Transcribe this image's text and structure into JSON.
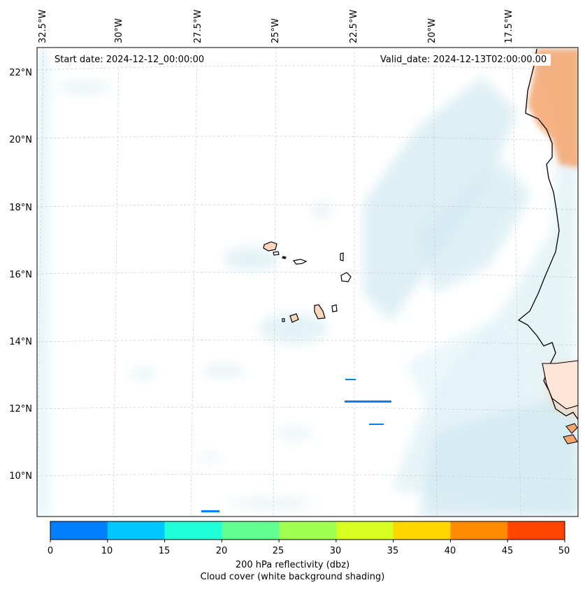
{
  "map": {
    "start_date": "Start date: 2024-12-12_00:00:00",
    "valid_date": "Valid_date: 2024-12-13T02:00:00.00",
    "longitude_labels": [
      "32.5°W",
      "30°W",
      "27.5°W",
      "25°W",
      "22.5°W",
      "20°W",
      "17.5°W"
    ],
    "latitude_labels": [
      "22°N",
      "20°N",
      "18°N",
      "16°N",
      "14°N",
      "12°N",
      "10°N"
    ],
    "land_color": "#fbd5bd",
    "coast_color": "#000000",
    "cloud_color": "#add8e6",
    "warm_color": "#f4a46c"
  },
  "colorbar": {
    "ticks": [
      "0",
      "10",
      "15",
      "20",
      "25",
      "30",
      "35",
      "40",
      "45",
      "50"
    ],
    "colors": [
      "#0080ff",
      "#00c8ff",
      "#20ffd8",
      "#60ff90",
      "#a0ff50",
      "#d8ff20",
      "#ffd700",
      "#ff8c00",
      "#ff4500"
    ],
    "label": "200 hPa reflectivity (dbz)",
    "sublabel": "Cloud cover (white background shading)"
  }
}
